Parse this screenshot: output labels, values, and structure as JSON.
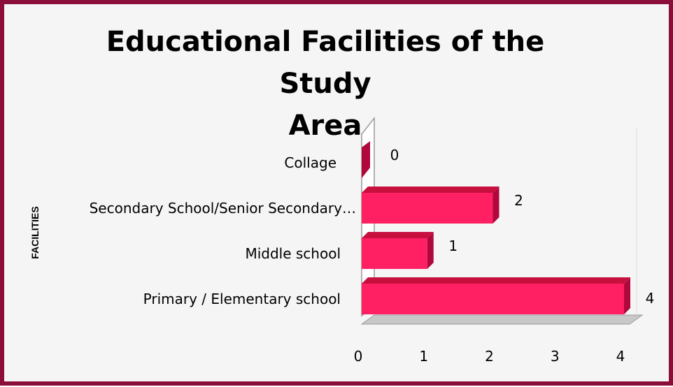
{
  "chart_data": {
    "type": "bar",
    "orientation": "horizontal",
    "title": "Educational Facilities of the Study Area",
    "title_lines": [
      "Educational Facilities of the Study",
      "Area"
    ],
    "ylabel": "FACILITIES",
    "xlabel": "",
    "categories": [
      "Primary / Elementary school",
      "Middle school",
      "Secondary School/Senior Secondary…",
      "Collage"
    ],
    "values": [
      4,
      1,
      2,
      0
    ],
    "data_labels": [
      "4",
      "1",
      "2",
      "0"
    ],
    "xlim": [
      0,
      4
    ],
    "xticks": [
      "0",
      "1",
      "2",
      "3",
      "4"
    ],
    "bar_color": "#ff1f63",
    "bar_side_color": "#b0083c",
    "bar_top_color": "#c8103f",
    "frame_color": "#8b0e3a",
    "grid": false,
    "style": "3d-clustered-bar"
  }
}
